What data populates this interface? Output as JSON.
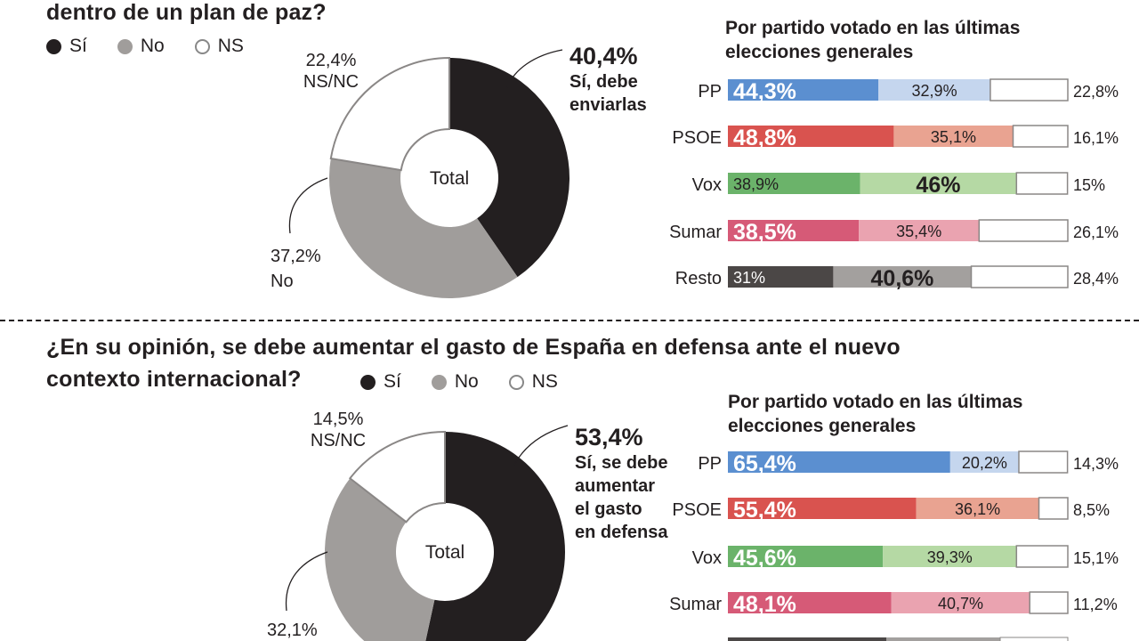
{
  "legend": [
    {
      "label": "Sí",
      "color": "#231f20"
    },
    {
      "label": "No",
      "color": "#a09d9b"
    },
    {
      "label": "NS",
      "color": "#ffffff"
    }
  ],
  "subtitle": [
    "Por partido votado en las últimas",
    "elecciones generales"
  ],
  "colors": {
    "PP": [
      "#5b8fd0",
      "#c5d6ee"
    ],
    "PSOE": [
      "#d9534f",
      "#e9a391"
    ],
    "Vox": [
      "#6bb36a",
      "#b5d9a4"
    ],
    "Sumar": [
      "#d65a77",
      "#eaa3b0"
    ],
    "Resto": [
      "#4b4746",
      "#a3a09e"
    ]
  },
  "chart_data": [
    {
      "type": "pie",
      "title": "dentro de un plan de paz?",
      "center_label": "Total",
      "slices": [
        {
          "name": "Sí",
          "value": 40.4,
          "label": "40,4%",
          "desc": [
            "Sí, debe",
            "enviarlas"
          ]
        },
        {
          "name": "No",
          "value": 37.2,
          "label": "37,2%",
          "desc": [
            "No"
          ]
        },
        {
          "name": "NS",
          "value": 22.4,
          "label": "22,4%",
          "desc": [
            "NS/NC"
          ]
        }
      ],
      "bars": {
        "type": "bar",
        "stacked": true,
        "categories": [
          "PP",
          "PSOE",
          "Vox",
          "Sumar",
          "Resto"
        ],
        "series": [
          {
            "name": "Sí",
            "values": [
              44.3,
              48.8,
              38.9,
              38.5,
              31
            ],
            "labels": [
              "44,3%",
              "48,8%",
              "38,9%",
              "38,5%",
              "31%"
            ]
          },
          {
            "name": "No",
            "values": [
              32.9,
              35.1,
              46,
              35.4,
              40.6
            ],
            "labels": [
              "32,9%",
              "35,1%",
              "46%",
              "35,4%",
              "40,6%"
            ]
          },
          {
            "name": "NS",
            "values": [
              22.8,
              16.1,
              15,
              26.1,
              28.4
            ],
            "labels": [
              "22,8%",
              "16,1%",
              "15%",
              "26,1%",
              "28,4%"
            ]
          }
        ],
        "bold": [
          [
            1,
            0,
            0
          ],
          [
            1,
            0,
            0
          ],
          [
            0,
            1,
            0
          ],
          [
            1,
            0,
            0
          ],
          [
            0,
            1,
            0
          ]
        ]
      }
    },
    {
      "type": "pie",
      "title": [
        "¿En su opinión, se debe aumentar el gasto de España en defensa ante el nuevo",
        "contexto internacional?"
      ],
      "center_label": "Total",
      "slices": [
        {
          "name": "Sí",
          "value": 53.4,
          "label": "53,4%",
          "desc": [
            "Sí, se debe",
            "aumentar",
            "el gasto",
            "en defensa"
          ]
        },
        {
          "name": "No",
          "value": 32.1,
          "label": "32,1%",
          "desc": []
        },
        {
          "name": "NS",
          "value": 14.5,
          "label": "14,5%",
          "desc": [
            "NS/NC"
          ]
        }
      ],
      "bars": {
        "type": "bar",
        "stacked": true,
        "categories": [
          "PP",
          "PSOE",
          "Vox",
          "Sumar"
        ],
        "series": [
          {
            "name": "Sí",
            "values": [
              65.4,
              55.4,
              45.6,
              48.1
            ],
            "labels": [
              "65,4%",
              "55,4%",
              "45,6%",
              "48,1%"
            ]
          },
          {
            "name": "No",
            "values": [
              20.2,
              36.1,
              39.3,
              40.7
            ],
            "labels": [
              "20,2%",
              "36,1%",
              "39,3%",
              "40,7%"
            ]
          },
          {
            "name": "NS",
            "values": [
              14.3,
              8.5,
              15.1,
              11.2
            ],
            "labels": [
              "14,3%",
              "8,5%",
              "15,1%",
              "11,2%"
            ]
          }
        ],
        "bold": [
          [
            1,
            0,
            0
          ],
          [
            1,
            0,
            0
          ],
          [
            1,
            0,
            0
          ],
          [
            1,
            0,
            0
          ]
        ]
      }
    }
  ]
}
